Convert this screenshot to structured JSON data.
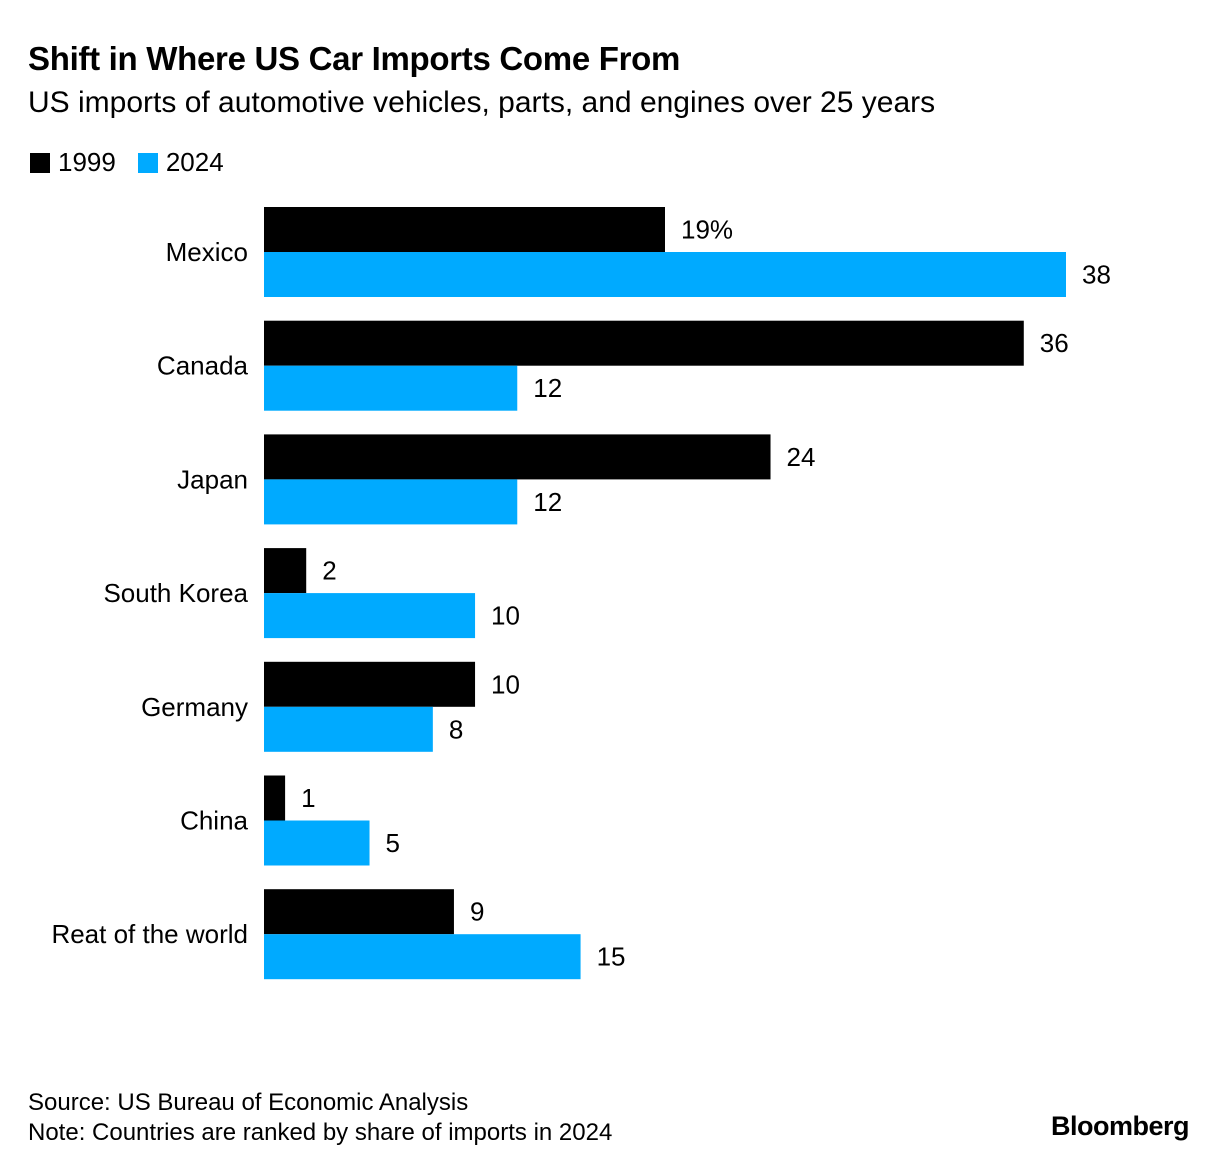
{
  "title": "Shift in Where US Car Imports Come From",
  "subtitle": "US imports of automotive vehicles, parts, and engines over 25 years",
  "legend": [
    {
      "label": "1999",
      "color": "#000000"
    },
    {
      "label": "2024",
      "color": "#00aaff"
    }
  ],
  "chart_data": {
    "type": "bar",
    "orientation": "horizontal",
    "categories": [
      "Mexico",
      "Canada",
      "Japan",
      "South Korea",
      "Germany",
      "China",
      "Reat of the world"
    ],
    "series": [
      {
        "name": "1999",
        "values": [
          19,
          36,
          24,
          2,
          10,
          1,
          9
        ],
        "labels": [
          "19%",
          "36",
          "24",
          "2",
          "10",
          "1",
          "9"
        ],
        "color": "#000000"
      },
      {
        "name": "2024",
        "values": [
          38,
          12,
          12,
          10,
          8,
          5,
          15
        ],
        "labels": [
          "38",
          "12",
          "12",
          "10",
          "8",
          "5",
          "15"
        ],
        "color": "#00aaff"
      }
    ],
    "xlim": [
      0,
      38
    ],
    "grid": false,
    "legend_position": "top-left"
  },
  "footer": {
    "source": "Source: US Bureau of Economic Analysis",
    "note": "Note: Countries are ranked by share of imports in 2024",
    "brand": "Bloomberg"
  }
}
